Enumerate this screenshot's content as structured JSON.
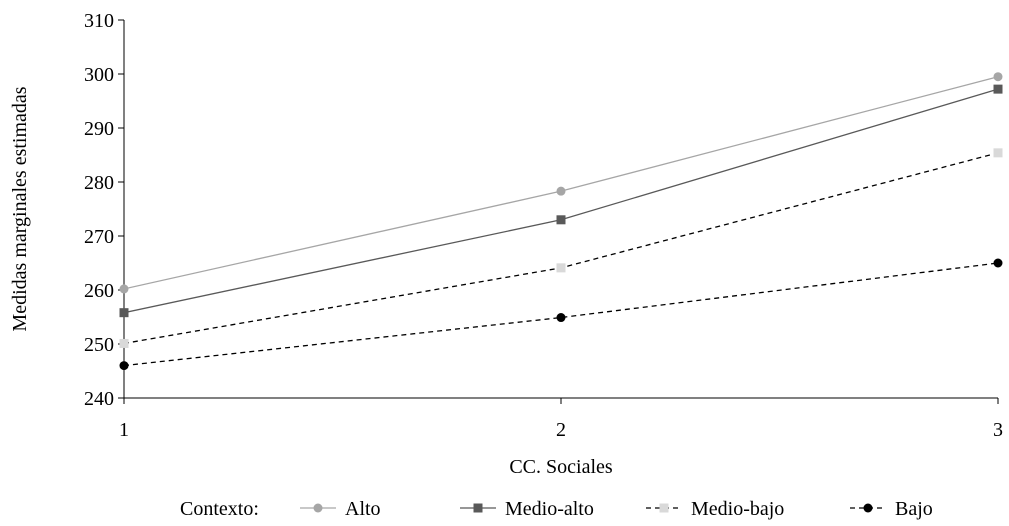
{
  "chart_data": {
    "type": "line",
    "title": "",
    "xlabel": "CC. Sociales",
    "ylabel": "Medidas marginales estimadas",
    "x": [
      1,
      2,
      3
    ],
    "ylim": [
      240,
      310
    ],
    "yticks": [
      240,
      250,
      260,
      270,
      280,
      290,
      300,
      310
    ],
    "grid": false,
    "legend": {
      "title": "Contexto:",
      "placement": "bottom"
    },
    "series": [
      {
        "name": "Alto",
        "values": [
          260.2,
          278.3,
          299.5
        ],
        "color": "#a6a6a6",
        "marker": "circle",
        "dash": "solid"
      },
      {
        "name": "Medio-alto",
        "values": [
          255.8,
          273.0,
          297.2
        ],
        "color": "#595959",
        "marker": "square",
        "dash": "solid"
      },
      {
        "name": "Medio-bajo",
        "values": [
          250.1,
          264.1,
          285.4
        ],
        "color": "#d9d9d9",
        "marker": "square",
        "dash": "dashed"
      },
      {
        "name": "Bajo",
        "values": [
          246.0,
          254.9,
          265.0
        ],
        "color": "#000000",
        "marker": "circle",
        "dash": "dashed"
      }
    ]
  }
}
